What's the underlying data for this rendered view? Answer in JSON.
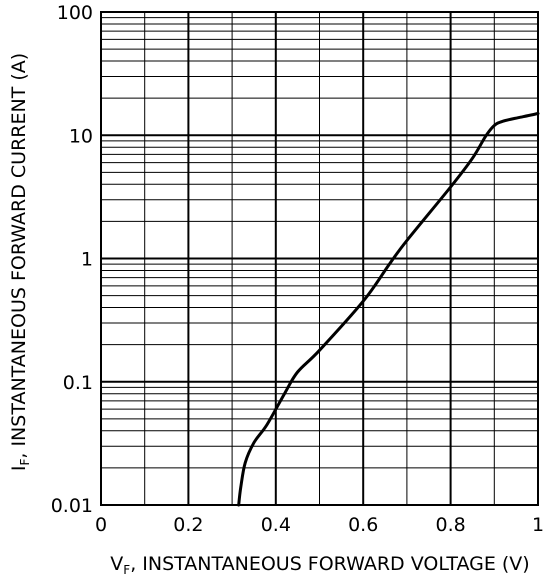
{
  "chart_data": {
    "type": "line",
    "xlabel_main": "V",
    "xlabel_sub": "F",
    "xlabel_rest": ", INSTANTANEOUS FORWARD VOLTAGE (V)",
    "ylabel_main": "I",
    "ylabel_sub": "F",
    "ylabel_rest": ", INSTANTANEOUS FORWARD CURRENT (A)",
    "xlim": [
      0,
      1
    ],
    "ylim": [
      0.01,
      100
    ],
    "y_scale": "log",
    "grid": true,
    "x_ticks": [
      {
        "v": 0,
        "label": "0"
      },
      {
        "v": 0.2,
        "label": "0.2"
      },
      {
        "v": 0.4,
        "label": "0.4"
      },
      {
        "v": 0.6,
        "label": "0.6"
      },
      {
        "v": 0.8,
        "label": "0.8"
      },
      {
        "v": 1,
        "label": "1"
      }
    ],
    "y_ticks": [
      {
        "v": 0.01,
        "label": "0.01"
      },
      {
        "v": 0.1,
        "label": "0.1"
      },
      {
        "v": 1,
        "label": "1"
      },
      {
        "v": 10,
        "label": "10"
      },
      {
        "v": 100,
        "label": "100"
      }
    ],
    "series": [
      {
        "x": [
          0.315,
          0.32,
          0.33,
          0.35,
          0.38,
          0.42,
          0.45,
          0.5,
          0.6,
          0.66,
          0.7,
          0.8,
          0.85,
          0.88,
          0.9,
          0.92,
          0.96,
          1.0
        ],
        "y": [
          0.01,
          0.014,
          0.022,
          0.032,
          0.045,
          0.08,
          0.12,
          0.18,
          0.45,
          0.9,
          1.4,
          3.8,
          6.5,
          9.8,
          12.0,
          13.0,
          14.0,
          15.0
        ]
      }
    ]
  }
}
